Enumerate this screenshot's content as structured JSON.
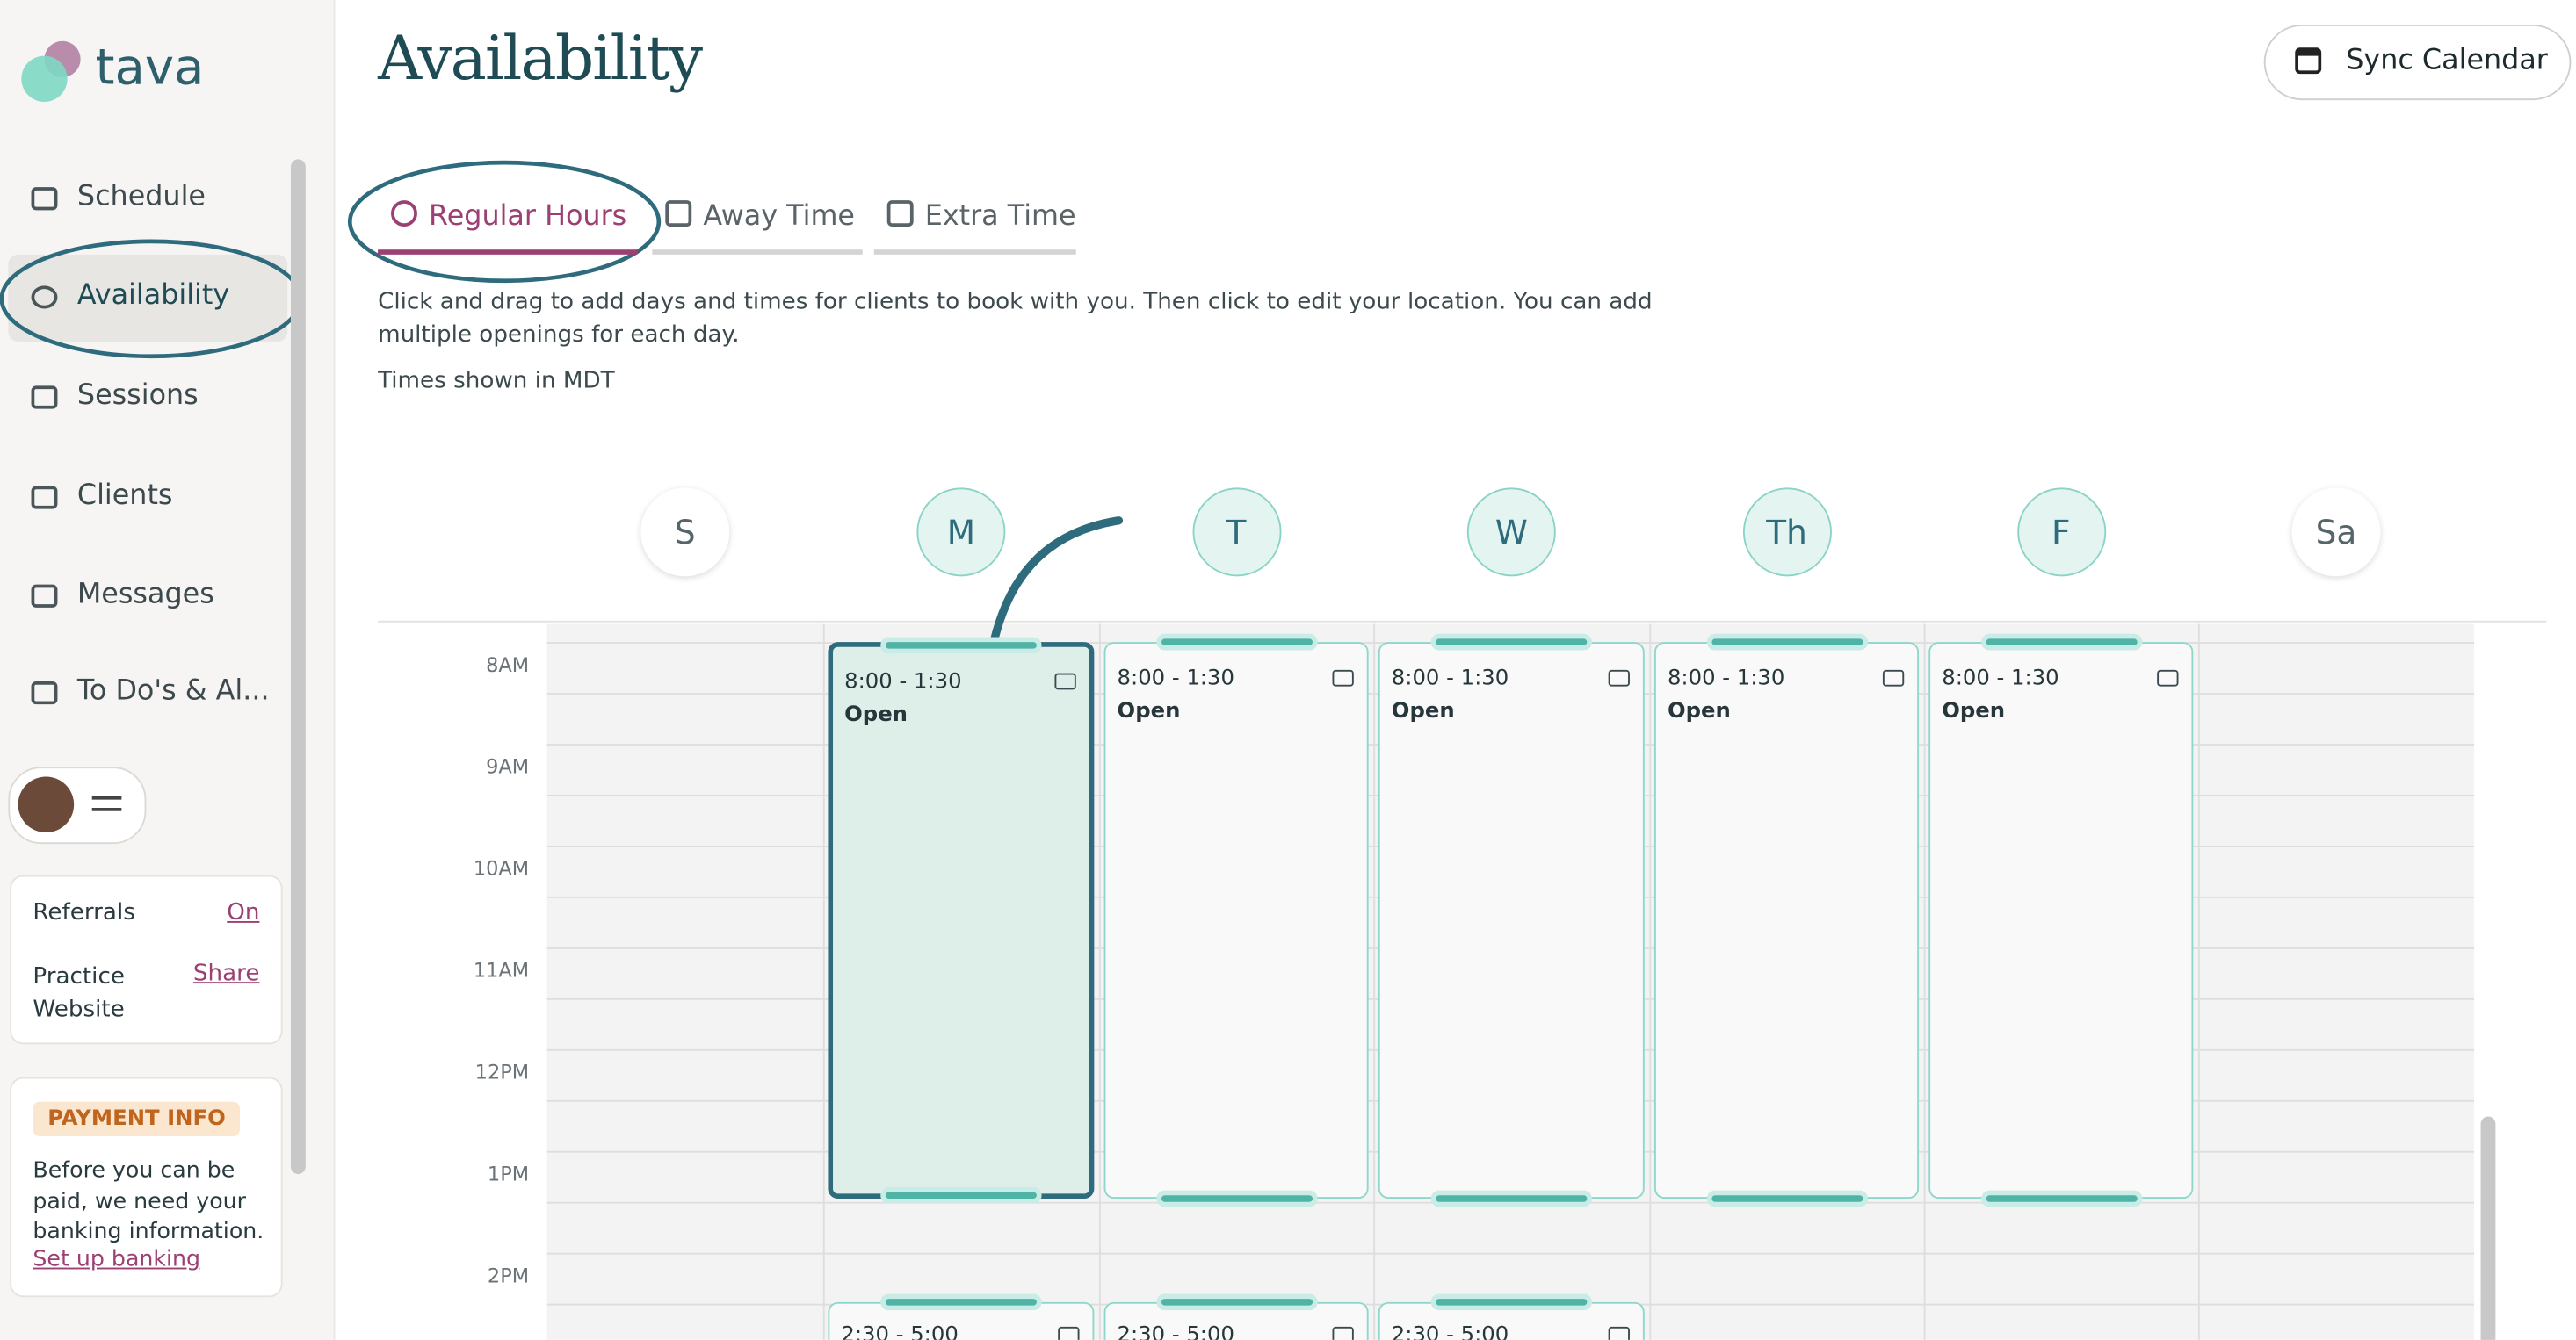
{
  "brand": "tava",
  "nav": [
    "Schedule",
    "Availability",
    "Sessions",
    "Clients",
    "Messages",
    "To Do's & Al..."
  ],
  "referrals": {
    "label": "Referrals",
    "action": "On"
  },
  "website": {
    "label": "Practice Website",
    "action": "Share"
  },
  "payment": {
    "badge": "PAYMENT INFO",
    "text": "Before you can be paid, we need your banking information.",
    "link": "Set up banking"
  },
  "header": {
    "title": "Availability",
    "button": "Sync Calendar"
  },
  "tabs": [
    "Regular Hours",
    "Away Time",
    "Extra Time"
  ],
  "description": "Click and drag to add days and times for clients to book with you. Then click to edit your location. You can add multiple openings for each day.",
  "timezone": "Times shown in MDT",
  "days": [
    "S",
    "M",
    "T",
    "W",
    "Th",
    "F",
    "Sa"
  ],
  "times": [
    "8AM",
    "9AM",
    "10AM",
    "11AM",
    "12PM",
    "1PM",
    "2PM"
  ],
  "slots": [
    {
      "time": "8:00 - 1:30",
      "status": "Open"
    },
    {
      "time": "8:00 - 1:30",
      "status": "Open"
    },
    {
      "time": "8:00 - 1:30",
      "status": "Open"
    },
    {
      "time": "8:00 - 1:30",
      "status": "Open"
    },
    {
      "time": "8:00 - 1:30",
      "status": "Open"
    }
  ],
  "afternoon_slots": [
    "2:30 - 5:00",
    "2:30 - 5:00",
    "2:30 - 5:00"
  ]
}
